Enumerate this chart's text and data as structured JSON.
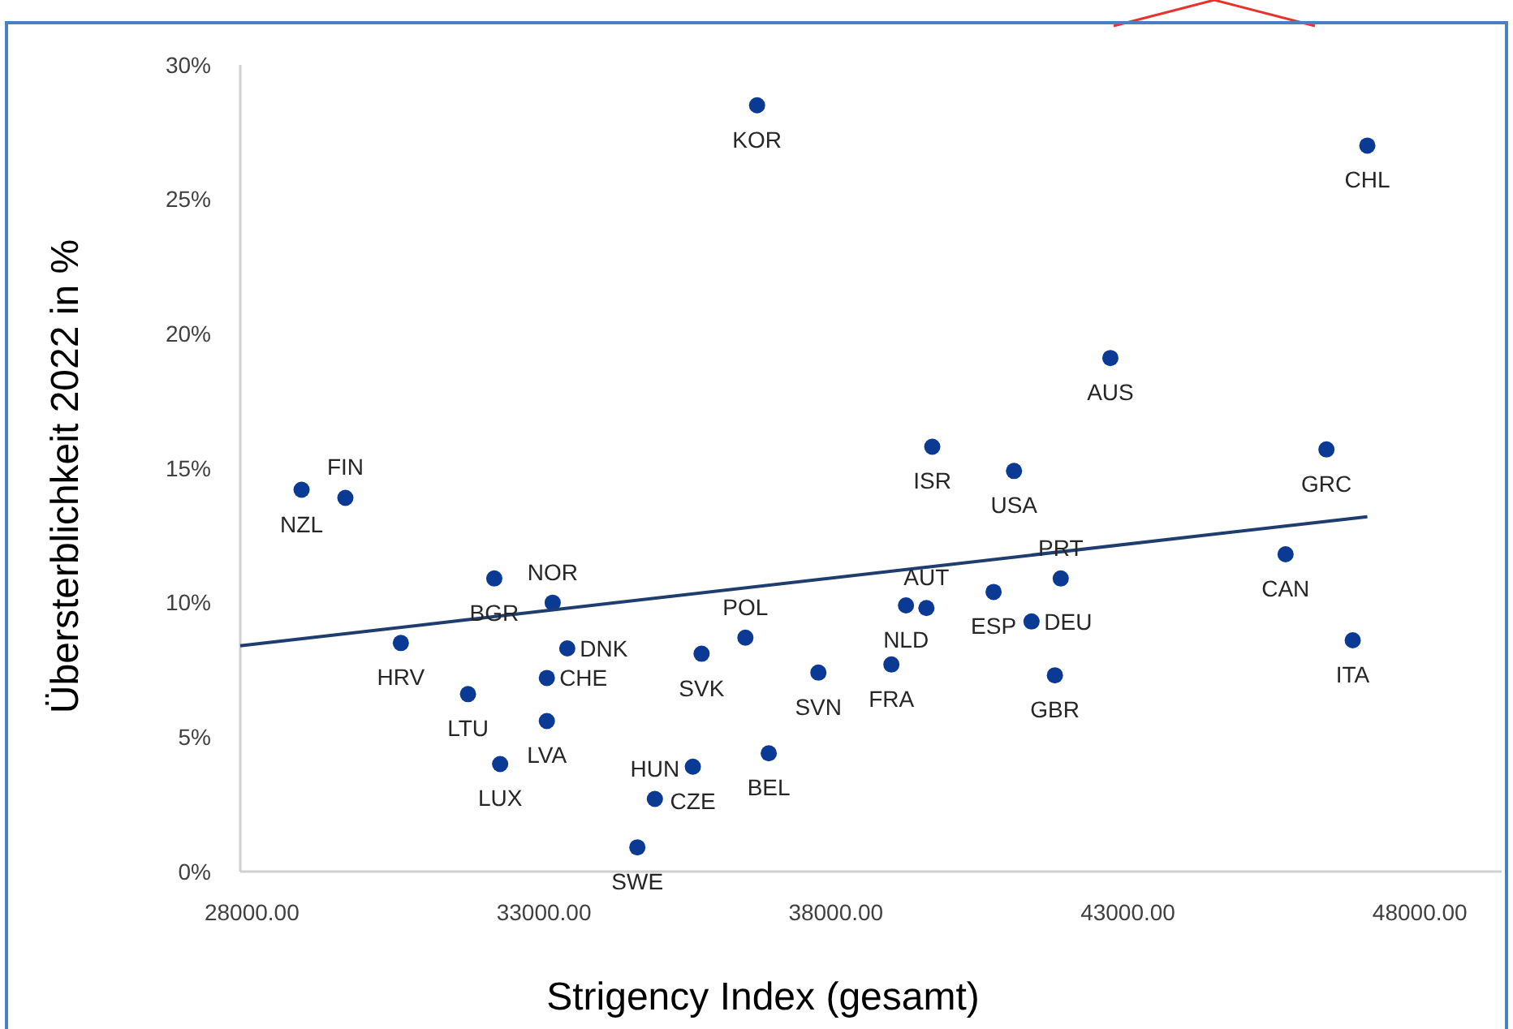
{
  "chart_data": {
    "type": "scatter",
    "xlabel": "Strigency Index (gesamt)",
    "ylabel": "Übersterblichkeit 2022 in %",
    "xlim": [
      27800,
      49400
    ],
    "xticks": [
      {
        "value": 28000,
        "label": "28000.00"
      },
      {
        "value": 33000,
        "label": "33000.00"
      },
      {
        "value": 38000,
        "label": "38000.00"
      },
      {
        "value": 43000,
        "label": "43000.00"
      },
      {
        "value": 48000,
        "label": "48000.00"
      }
    ],
    "ylim": [
      0,
      30
    ],
    "yticks": [
      {
        "value": 0,
        "label": "0%"
      },
      {
        "value": 5,
        "label": "5%"
      },
      {
        "value": 10,
        "label": "10%"
      },
      {
        "value": 15,
        "label": "15%"
      },
      {
        "value": 20,
        "label": "20%"
      },
      {
        "value": 25,
        "label": "25%"
      },
      {
        "value": 30,
        "label": "30%"
      }
    ],
    "grid": false,
    "marker": "circle",
    "series": [
      {
        "color": "#0b3a94",
        "x": [
          28850,
          29600,
          36650,
          47100,
          42700,
          39650,
          41050,
          46400,
          32150,
          33150,
          33400,
          33050,
          33050,
          32250,
          31700,
          30550,
          34600,
          34900,
          35550,
          36850,
          35700,
          36450,
          37700,
          38950,
          39200,
          39550,
          40700,
          41850,
          41350,
          41750,
          45700,
          46850
        ],
        "values": [
          14.2,
          13.9,
          28.5,
          27.0,
          19.1,
          15.8,
          14.9,
          15.7,
          10.9,
          10.0,
          8.3,
          7.2,
          5.6,
          4.0,
          6.6,
          8.5,
          0.9,
          2.7,
          3.9,
          4.4,
          8.1,
          8.7,
          7.4,
          7.7,
          9.9,
          9.8,
          10.4,
          10.9,
          9.3,
          7.3,
          11.8,
          8.6
        ]
      },
      {
        "type": "line",
        "color": "#1f3d6e",
        "line_style": "solid",
        "marker": "none",
        "x": [
          27800,
          47100
        ],
        "values": [
          8.4,
          13.2
        ]
      }
    ],
    "annotations": [
      {
        "text": "NZL",
        "x": 28850,
        "y": 14.2
      },
      {
        "text": "FIN",
        "x": 29600,
        "y": 13.9
      },
      {
        "text": "KOR",
        "x": 36650,
        "y": 28.5
      },
      {
        "text": "CHL",
        "x": 47100,
        "y": 27.0
      },
      {
        "text": "AUS",
        "x": 42700,
        "y": 19.1
      },
      {
        "text": "ISR",
        "x": 39650,
        "y": 15.8
      },
      {
        "text": "USA",
        "x": 41050,
        "y": 14.9
      },
      {
        "text": "GRC",
        "x": 46400,
        "y": 15.7
      },
      {
        "text": "BGR",
        "x": 32150,
        "y": 10.9
      },
      {
        "text": "NOR",
        "x": 33150,
        "y": 10.0
      },
      {
        "text": "DNK",
        "x": 33400,
        "y": 8.3
      },
      {
        "text": "CHE",
        "x": 33050,
        "y": 7.2
      },
      {
        "text": "LVA",
        "x": 33050,
        "y": 5.6
      },
      {
        "text": "LUX",
        "x": 32250,
        "y": 4.0
      },
      {
        "text": "LTU",
        "x": 31700,
        "y": 6.6
      },
      {
        "text": "HRV",
        "x": 30550,
        "y": 8.5
      },
      {
        "text": "SWE",
        "x": 34600,
        "y": 0.9
      },
      {
        "text": "HUN",
        "x": 34900,
        "y": 2.7
      },
      {
        "text": "CZE",
        "x": 35550,
        "y": 3.9
      },
      {
        "text": "BEL",
        "x": 36850,
        "y": 4.4
      },
      {
        "text": "SVK",
        "x": 35700,
        "y": 8.1
      },
      {
        "text": "POL",
        "x": 36450,
        "y": 8.7
      },
      {
        "text": "SVN",
        "x": 37700,
        "y": 7.4
      },
      {
        "text": "FRA",
        "x": 38950,
        "y": 7.7
      },
      {
        "text": "NLD",
        "x": 39200,
        "y": 9.9
      },
      {
        "text": "AUT",
        "x": 39550,
        "y": 9.8
      },
      {
        "text": "ESP",
        "x": 40700,
        "y": 10.4
      },
      {
        "text": "PRT",
        "x": 41850,
        "y": 10.9
      },
      {
        "text": "DEU",
        "x": 41350,
        "y": 9.3
      },
      {
        "text": "GBR",
        "x": 41750,
        "y": 7.3
      },
      {
        "text": "CAN",
        "x": 45700,
        "y": 11.8
      },
      {
        "text": "ITA",
        "x": 46850,
        "y": 8.6
      }
    ]
  }
}
